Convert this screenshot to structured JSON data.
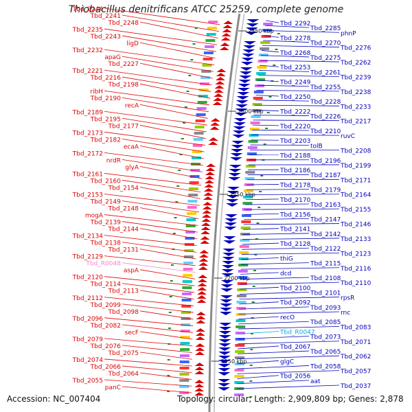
{
  "title": "Thiobacillus denitrificans ATCC 25259, complete genome",
  "accession": "Accession: NC_007404",
  "summary": "Topology: circular; Length: 2,909,809 bp; Genes: 2,878",
  "colors": {
    "forward_strand": "#dd0000",
    "reverse_strand": "#0000bb",
    "rna_forward": "#ee88cc",
    "rna_reverse": "#00aadd",
    "backbone": "#999999"
  },
  "kbp_labels": [
    "2350 kbp",
    "2300 kbp",
    "2250 kbp",
    "2200 kbp",
    "2150 kbp"
  ],
  "left_labels": [
    "Tbd_2244",
    "Tbd_2241",
    "Tbd_2248",
    "Tbd_2235",
    "Tbd_2243",
    "ligD",
    "Tbd_2232",
    "apaG",
    "Tbd_2227",
    "Tbd_2221",
    "Tbd_2216",
    "Tbd_2198",
    "ribH",
    "Tbd_2190",
    "recA",
    "Tbd_2189",
    "Tbd_2195",
    "Tbd_2177",
    "Tbd_2173",
    "Tbd_2182",
    "ecaA",
    "Tbd_2172",
    "nrdR",
    "glyA",
    "Tbd_2161",
    "Tbd_2160",
    "Tbd_2154",
    "Tbd_2153",
    "Tbd_2149",
    "Tbd_2148",
    "mogA",
    "Tbd_2139",
    "Tbd_2144",
    "Tbd_2134",
    "Tbd_2138",
    "Tbd_2131",
    "Tbd_2129",
    "Tbd_R0048",
    "aspA",
    "Tbd_2120",
    "Tbd_2114",
    "Tbd_2113",
    "Tbd_2112",
    "Tbd_2099",
    "Tbd_2098",
    "Tbd_2096",
    "Tbd_2082",
    "secF",
    "Tbd_2079",
    "Tbd_2076",
    "Tbd_2075",
    "Tbd_2074",
    "Tbd_2066",
    "Tbd_2064",
    "Tbd_2055",
    "panC"
  ],
  "right_labels": [
    "Tbd_2292",
    "Tbd_2285",
    "phnP",
    "Tbd_2278",
    "Tbd_2270",
    "Tbd_2276",
    "Tbd_2268",
    "Tbd_2275",
    "Tbd_2262",
    "Tbd_2253",
    "Tbd_2261",
    "Tbd_2239",
    "Tbd_2249",
    "Tbd_2255",
    "Tbd_2238",
    "Tbd_2250",
    "Tbd_2228",
    "Tbd_2233",
    "Tbd_2222",
    "Tbd_2226",
    "Tbd_2217",
    "Tbd_2220",
    "Tbd_2210",
    "ruvC",
    "Tbd_2203",
    "tolB",
    "Tbd_2208",
    "Tbd_2188",
    "Tbd_2196",
    "Tbd_2199",
    "Tbd_2186",
    "Tbd_2187",
    "Tbd_2171",
    "Tbd_2178",
    "Tbd_2179",
    "Tbd_2164",
    "Tbd_2170",
    "Tbd_2163",
    "Tbd_2155",
    "Tbd_2156",
    "Tbd_2147",
    "Tbd_2146",
    "Tbd_2141",
    "Tbd_2142",
    "Tbd_2133",
    "Tbd_2128",
    "Tbd_2122",
    "Tbd_2123",
    "thiG",
    "Tbd_2115",
    "Tbd_2116",
    "dcd",
    "Tbd_2108",
    "Tbd_2110",
    "Tbd_2100",
    "Tbd_2101",
    "rpsR",
    "Tbd_2092",
    "Tbd_2093",
    "rnc",
    "recO",
    "Tbd_2085",
    "Tbd_2083",
    "Tbd_R0047",
    "Tbd_2073",
    "Tbd_2071",
    "Tbd_2067",
    "Tbd_2065",
    "Tbd_2062",
    "glgC",
    "Tbd_2058",
    "Tbd_2057",
    "Tbd_2056",
    "aat",
    "Tbd_2037"
  ]
}
